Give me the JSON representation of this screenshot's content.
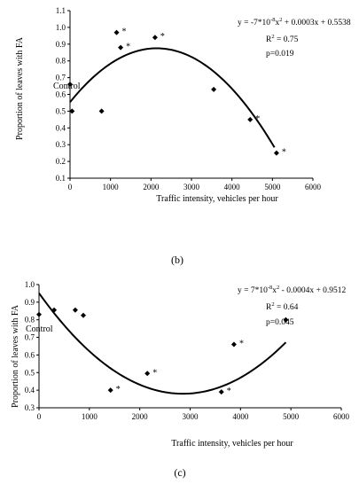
{
  "chart_data": [
    {
      "panel_label": "(b)",
      "type": "scatter",
      "xlabel": "Traffic intensity, vehicles per hour",
      "ylabel": "Proportion of leaves with FA",
      "xlim": [
        0,
        6000
      ],
      "ylim": [
        0.1,
        1.1
      ],
      "x_ticks": [
        "0",
        "1000",
        "2000",
        "3000",
        "4000",
        "5000",
        "6000"
      ],
      "y_ticks": [
        "0.1",
        "0.2",
        "0.3",
        "0.4",
        "0.5",
        "0.6",
        "0.7",
        "0.8",
        "0.9",
        "1.0",
        "1.1"
      ],
      "control_label": "Control",
      "points": [
        {
          "x": 0,
          "y": 0.66,
          "mark": ""
        },
        {
          "x": 50,
          "y": 0.5,
          "mark": ""
        },
        {
          "x": 780,
          "y": 0.5,
          "mark": ""
        },
        {
          "x": 1150,
          "y": 0.97,
          "mark": "*"
        },
        {
          "x": 1250,
          "y": 0.88,
          "mark": "*"
        },
        {
          "x": 2100,
          "y": 0.94,
          "mark": "*"
        },
        {
          "x": 3550,
          "y": 0.63,
          "mark": ""
        },
        {
          "x": 4450,
          "y": 0.45,
          "mark": "*"
        },
        {
          "x": 5100,
          "y": 0.25,
          "mark": "*"
        }
      ],
      "trend": {
        "a": -7e-08,
        "b": 0.0003,
        "c": 0.5538,
        "x_range": [
          0,
          5050
        ]
      },
      "annotations": {
        "equation_pre": "y = -7*10",
        "equation_exp": "-8",
        "equation_mid": "x",
        "equation_exp2": "2",
        "equation_post": " + 0.0003x + 0.5538",
        "r2_pre": "R",
        "r2_exp": "2",
        "r2_post": " = 0.75",
        "p": "p=0.019"
      }
    },
    {
      "panel_label": "(c)",
      "type": "scatter",
      "xlabel": "Traffic intensity, vehicles per hour",
      "ylabel": "Proportion of leaves with FA",
      "xlim": [
        0,
        6000
      ],
      "ylim": [
        0.3,
        1.0
      ],
      "x_ticks": [
        "0",
        "1000",
        "2000",
        "3000",
        "4000",
        "5000",
        "6000"
      ],
      "y_ticks": [
        "0.3",
        "0.4",
        "0.5",
        "0.6",
        "0.7",
        "0.8",
        "0.9",
        "1.0"
      ],
      "control_label": "Control",
      "points": [
        {
          "x": 0,
          "y": 0.83,
          "mark": ""
        },
        {
          "x": 300,
          "y": 0.855,
          "mark": ""
        },
        {
          "x": 720,
          "y": 0.855,
          "mark": ""
        },
        {
          "x": 880,
          "y": 0.825,
          "mark": ""
        },
        {
          "x": 1420,
          "y": 0.4,
          "mark": "*"
        },
        {
          "x": 2150,
          "y": 0.495,
          "mark": "*"
        },
        {
          "x": 3620,
          "y": 0.39,
          "mark": "*"
        },
        {
          "x": 3870,
          "y": 0.66,
          "mark": "*"
        },
        {
          "x": 4900,
          "y": 0.8,
          "mark": ""
        }
      ],
      "trend": {
        "a": 7e-08,
        "b": -0.0004,
        "c": 0.9512,
        "x_range": [
          0,
          4900
        ]
      },
      "annotations": {
        "equation_pre": "y = 7*10",
        "equation_exp": "-8",
        "equation_mid": "x",
        "equation_exp2": "2",
        "equation_post": " - 0.0004x + 0.9512",
        "r2_pre": "R",
        "r2_exp": "2",
        "r2_post": " = 0.64",
        "p": "p=0.045"
      }
    }
  ]
}
